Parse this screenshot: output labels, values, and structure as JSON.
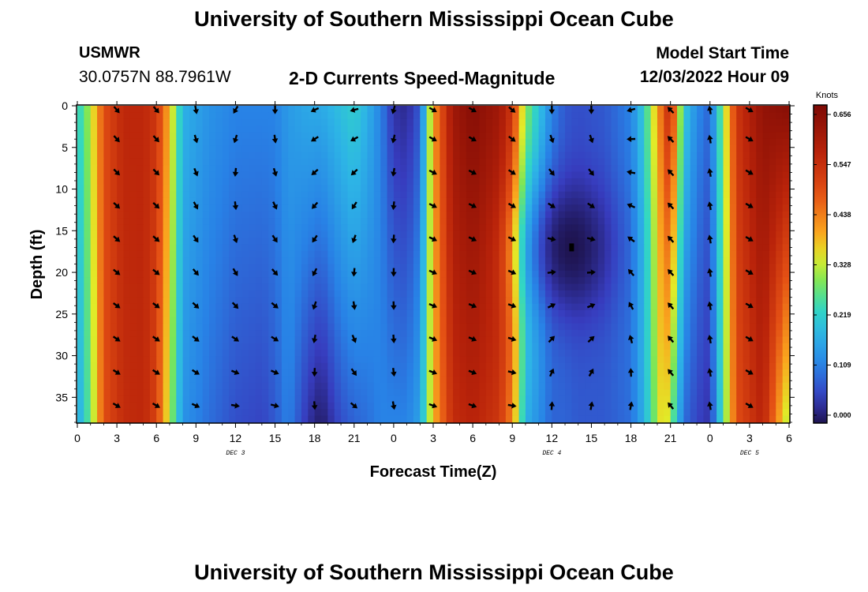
{
  "header": {
    "title": "University of Southern Mississippi Ocean Cube",
    "station": "USMWR",
    "coords": "30.0757N  88.7961W",
    "product": "2-D Currents Speed-Magnitude",
    "start_label": "Model Start Time",
    "start_value": "12/03/2022 Hour 09"
  },
  "footer": {
    "title": "University of Southern Mississippi Ocean Cube"
  },
  "chart_data": {
    "type": "heatmap",
    "title": "2-D Currents Speed-Magnitude",
    "xlabel": "Forecast Time(Z)",
    "ylabel": "Depth (ft)",
    "x_hours_range": [
      0,
      54
    ],
    "ylim": [
      0,
      38
    ],
    "x_tick_hours": [
      0,
      3,
      6,
      9,
      12,
      15,
      18,
      21,
      24,
      27,
      30,
      33,
      36,
      39,
      42,
      45,
      48,
      51,
      54
    ],
    "x_tick_labels": [
      "0",
      "3",
      "6",
      "9",
      "12",
      "15",
      "18",
      "21",
      "0",
      "3",
      "6",
      "9",
      "12",
      "15",
      "18",
      "21",
      "0",
      "3",
      "6"
    ],
    "y_ticks": [
      0,
      5,
      10,
      15,
      20,
      25,
      30,
      35
    ],
    "date_labels": [
      {
        "hour": 12,
        "text": "DEC 3"
      },
      {
        "hour": 36,
        "text": "DEC 4"
      },
      {
        "hour": 51,
        "text": "DEC 5"
      }
    ],
    "colorbar": {
      "unit": "Knots",
      "min": 0.0,
      "max": 0.656,
      "ticks": [
        "0.656",
        "0.547",
        "0.438",
        "0.328",
        "0.219",
        "0.109",
        "0.000"
      ]
    },
    "speed_bands_hours": [
      0,
      1,
      2,
      3.5,
      5,
      6,
      7,
      8,
      10,
      12,
      14,
      15,
      16,
      17.5,
      18.5,
      20,
      21,
      22,
      23,
      24,
      25,
      26,
      27,
      28.5,
      30,
      32,
      33,
      34,
      36,
      37,
      38,
      40,
      42,
      43,
      44.5,
      45,
      46,
      47,
      48,
      49,
      50,
      52,
      54
    ],
    "speed_top": [
      0.22,
      0.32,
      0.48,
      0.55,
      0.55,
      0.52,
      0.38,
      0.18,
      0.14,
      0.12,
      0.12,
      0.12,
      0.15,
      0.17,
      0.17,
      0.2,
      0.22,
      0.18,
      0.12,
      0.04,
      0.03,
      0.08,
      0.4,
      0.6,
      0.64,
      0.6,
      0.52,
      0.3,
      0.12,
      0.08,
      0.07,
      0.08,
      0.12,
      0.22,
      0.48,
      0.55,
      0.22,
      0.13,
      0.09,
      0.3,
      0.52,
      0.62,
      0.64
    ],
    "speed_bottom": [
      0.16,
      0.28,
      0.48,
      0.54,
      0.55,
      0.5,
      0.32,
      0.14,
      0.1,
      0.07,
      0.06,
      0.08,
      0.12,
      0.04,
      0.01,
      0.07,
      0.09,
      0.1,
      0.12,
      0.12,
      0.12,
      0.16,
      0.38,
      0.54,
      0.56,
      0.52,
      0.42,
      0.18,
      0.09,
      0.09,
      0.08,
      0.08,
      0.1,
      0.18,
      0.38,
      0.3,
      0.1,
      0.06,
      0.04,
      0.26,
      0.48,
      0.56,
      0.3
    ],
    "eddy": {
      "hour": 37.5,
      "depth": 17,
      "speed": 0.0
    },
    "vector_hours": [
      3,
      6,
      9,
      12,
      15,
      18,
      21,
      24,
      27,
      30,
      33,
      36,
      39,
      42,
      45,
      48,
      51
    ],
    "vector_depths": [
      0.5,
      4,
      8,
      12,
      16,
      20,
      24,
      28,
      32,
      36
    ],
    "vector_dir_surface": [
      -50,
      -50,
      -80,
      -120,
      -90,
      -155,
      -165,
      -105,
      -30,
      -30,
      -40,
      -90,
      -90,
      -165,
      135,
      100,
      -30
    ],
    "vector_dir_bottom": [
      -30,
      -30,
      -25,
      -10,
      -15,
      -85,
      -40,
      -80,
      -20,
      -20,
      -10,
      85,
      80,
      80,
      130,
      100,
      -30
    ]
  }
}
